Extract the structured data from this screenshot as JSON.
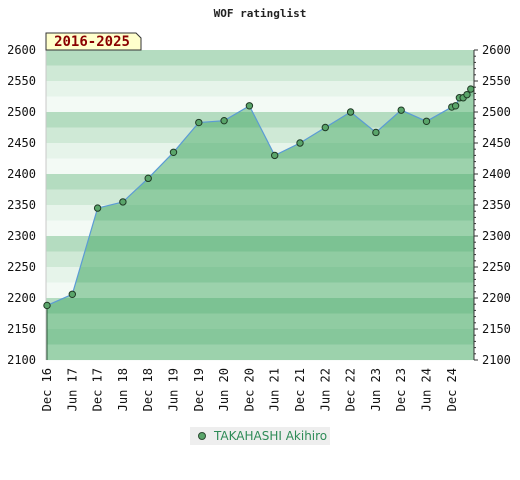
{
  "chart_data": {
    "type": "area",
    "title": "WOF ratinglist",
    "badge": "2016-2025",
    "ylim": [
      2100,
      2600
    ],
    "y_ticks": [
      2100,
      2150,
      2200,
      2250,
      2300,
      2350,
      2400,
      2450,
      2500,
      2550,
      2600
    ],
    "x_tick_labels": [
      "Dec 16",
      "Jun 17",
      "Dec 17",
      "Jun 18",
      "Dec 18",
      "Jun 19",
      "Dec 19",
      "Jun 20",
      "Dec 20",
      "Jun 21",
      "Dec 21",
      "Jun 22",
      "Dec 22",
      "Jun 23",
      "Dec 23",
      "Jun 24",
      "Dec 24"
    ],
    "legend_position": "bottom",
    "colors": {
      "area": "#7fc494",
      "line": "#5b9bd5",
      "marker": "#5aa56a",
      "badge_bg": "#ffffcc"
    },
    "series": [
      {
        "name": "TAKAHASHI Akihiro",
        "x": [
          0,
          1,
          2,
          3,
          4,
          5,
          6,
          7,
          8,
          9,
          10,
          11,
          12,
          13,
          14,
          15,
          16,
          16.15,
          16.3,
          16.45,
          16.6,
          16.75
        ],
        "values": [
          2188,
          2206,
          2345,
          2355,
          2393,
          2435,
          2483,
          2486,
          2510,
          2430,
          2450,
          2475,
          2500,
          2467,
          2503,
          2485,
          2508,
          2510,
          2523,
          2523,
          2528,
          2537
        ]
      }
    ]
  }
}
